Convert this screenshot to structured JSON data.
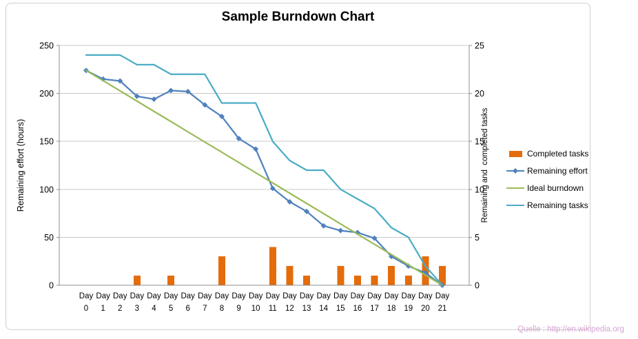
{
  "chart_data": {
    "type": "combo",
    "title": "Sample Burndown Chart",
    "ylabel_left": "Remaining effort (hours)",
    "ylabel_right": "Remaining and  completed tasks",
    "ylim_left": [
      0,
      250
    ],
    "ylim_right": [
      0,
      25
    ],
    "yticks_left": [
      0,
      50,
      100,
      150,
      200,
      250
    ],
    "yticks_right": [
      0,
      5,
      10,
      15,
      20,
      25
    ],
    "grid": true,
    "legend_position": "right",
    "categories": [
      "Day 0",
      "Day 1",
      "Day 2",
      "Day 3",
      "Day 4",
      "Day 5",
      "Day 6",
      "Day 7",
      "Day 8",
      "Day 9",
      "Day 10",
      "Day 11",
      "Day 12",
      "Day 13",
      "Day 14",
      "Day 15",
      "Day 16",
      "Day 17",
      "Day 18",
      "Day 19",
      "Day 20",
      "Day 21"
    ],
    "series": [
      {
        "name": "Completed tasks",
        "type": "bar",
        "axis": "right",
        "color": "#E46C0A",
        "values": [
          0,
          0,
          0,
          1,
          0,
          1,
          0,
          0,
          3,
          0,
          0,
          4,
          2,
          1,
          0,
          2,
          1,
          1,
          2,
          1,
          3,
          2
        ]
      },
      {
        "name": "Remaining effort",
        "type": "line",
        "axis": "left",
        "color": "#4F81BD",
        "marker": "diamond",
        "values": [
          224,
          215,
          213,
          197,
          194,
          203,
          202,
          188,
          176,
          153,
          142,
          101,
          87,
          77,
          62,
          57,
          55,
          49,
          30,
          20,
          13,
          0
        ]
      },
      {
        "name": "Ideal burndown",
        "type": "line",
        "axis": "left",
        "color": "#9BBB59",
        "values": [
          224,
          213.3,
          202.7,
          192,
          181.3,
          170.7,
          160,
          149.3,
          138.7,
          128,
          117.3,
          106.7,
          96,
          85.3,
          74.7,
          64,
          53.3,
          42.7,
          32,
          21.3,
          10.7,
          0
        ]
      },
      {
        "name": "Remaining tasks",
        "type": "line",
        "axis": "right",
        "color": "#4BACC6",
        "values": [
          24,
          24,
          24,
          23,
          23,
          22,
          22,
          22,
          19,
          19,
          19,
          15,
          13,
          12,
          12,
          10,
          9,
          8,
          6,
          5,
          2,
          0
        ]
      }
    ]
  },
  "source_text": "Quelle : http://en.wikipedia.org",
  "colors": {
    "axis": "#8c8c8c",
    "gridline": "#c9c9c9",
    "frame_border": "#cfcfcf",
    "source_text": "#d5a3d2"
  }
}
